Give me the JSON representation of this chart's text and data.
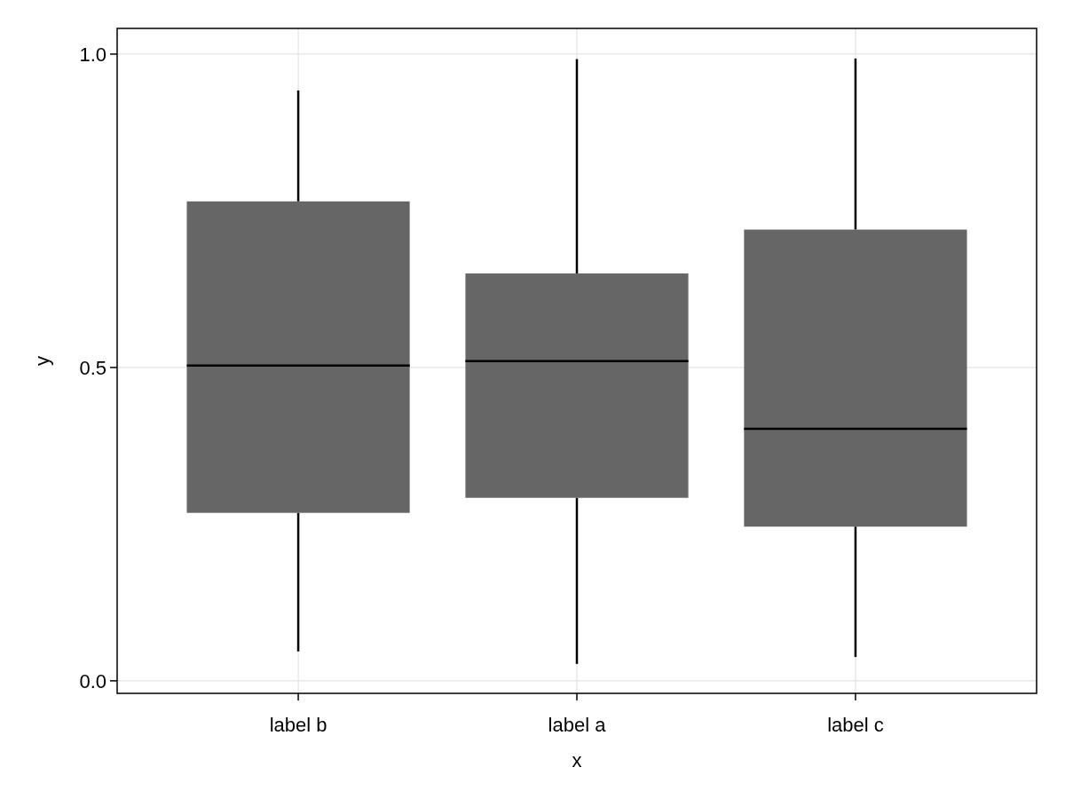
{
  "chart_data": {
    "type": "box",
    "xlabel": "x",
    "ylabel": "y",
    "categories": [
      "label b",
      "label a",
      "label c"
    ],
    "color": "#666666",
    "boxes": [
      {
        "low": 0.047,
        "q1": 0.268,
        "median": 0.503,
        "q3": 0.765,
        "high": 0.942
      },
      {
        "low": 0.027,
        "q1": 0.292,
        "median": 0.51,
        "q3": 0.65,
        "high": 0.992
      },
      {
        "low": 0.038,
        "q1": 0.246,
        "median": 0.402,
        "q3": 0.72,
        "high": 0.993
      }
    ],
    "ylim": [
      -0.02,
      1.041
    ],
    "yticks": [
      {
        "value": 0,
        "label": "0.0"
      },
      {
        "value": 0.5,
        "label": "0.5"
      },
      {
        "value": 1,
        "label": "1.0"
      }
    ],
    "grid": true
  }
}
